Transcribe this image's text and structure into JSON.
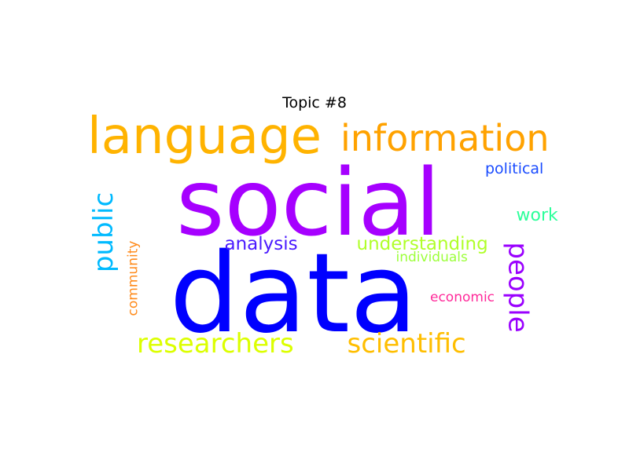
{
  "chart_data": {
    "type": "wordcloud",
    "title": "Topic #8",
    "words": [
      {
        "text": "social",
        "color": "#a600ff",
        "rotation": 0
      },
      {
        "text": "data",
        "color": "#0000ff",
        "rotation": 0
      },
      {
        "text": "language",
        "color": "#ffb300",
        "rotation": 0
      },
      {
        "text": "information",
        "color": "#ffa200",
        "rotation": 0
      },
      {
        "text": "researchers",
        "color": "#dcff00",
        "rotation": 0
      },
      {
        "text": "scientific",
        "color": "#ffbe00",
        "rotation": 0
      },
      {
        "text": "public",
        "color": "#00baff",
        "rotation": -90
      },
      {
        "text": "people",
        "color": "#9a00ff",
        "rotation": 90
      },
      {
        "text": "understanding",
        "color": "#b0ff2a",
        "rotation": 0
      },
      {
        "text": "analysis",
        "color": "#4a1aff",
        "rotation": 0
      },
      {
        "text": "work",
        "color": "#2cff9a",
        "rotation": 0
      },
      {
        "text": "political",
        "color": "#1a4cff",
        "rotation": 0
      },
      {
        "text": "individuals",
        "color": "#9cff3a",
        "rotation": 0
      },
      {
        "text": "economic",
        "color": "#ff2a9a",
        "rotation": 0
      },
      {
        "text": "community",
        "color": "#ff8a1a",
        "rotation": -90
      }
    ]
  }
}
